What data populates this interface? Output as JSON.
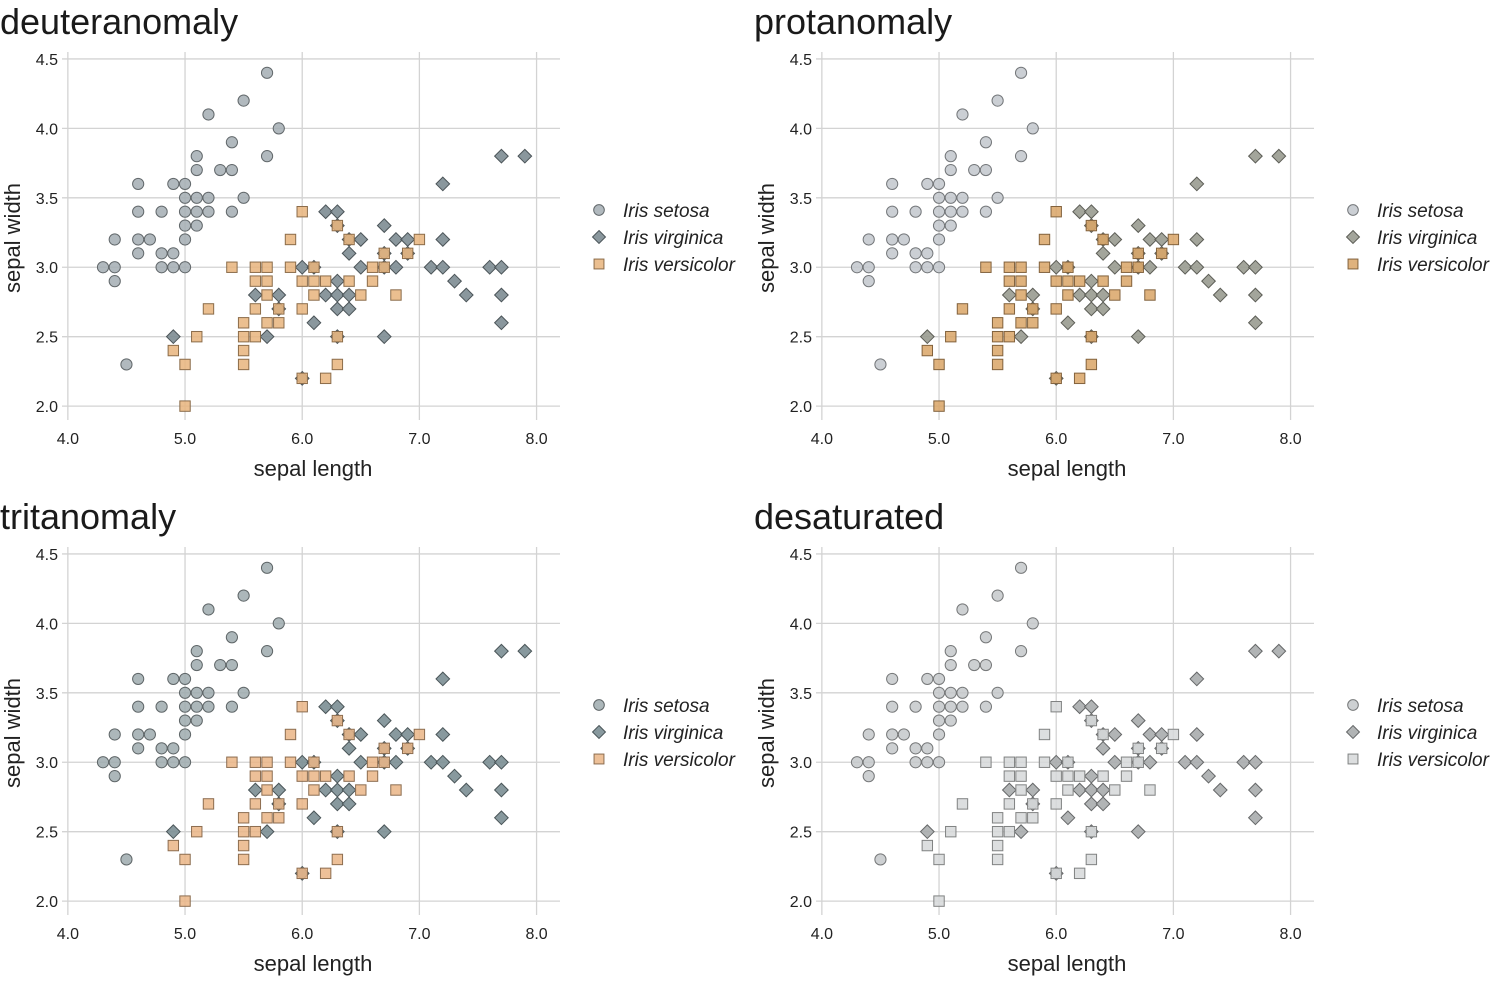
{
  "chart_data": [
    {
      "type": "scatter",
      "title": "deuteranomaly",
      "xlabel": "sepal length",
      "ylabel": "sepal width",
      "xlim": [
        3.95,
        8.2
      ],
      "ylim": [
        1.9,
        4.55
      ],
      "xticks": [
        "4.0",
        "5.0",
        "6.0",
        "7.0",
        "8.0"
      ],
      "yticks": [
        "2.0",
        "2.5",
        "3.0",
        "3.5",
        "4.0",
        "4.5"
      ],
      "grid": true,
      "legend_position": "right",
      "series": [
        {
          "name": "Iris setosa",
          "marker": "circle",
          "color": "#a3adb3"
        },
        {
          "name": "Iris virginica",
          "marker": "diamond",
          "color": "#7d8c92"
        },
        {
          "name": "Iris versicolor",
          "marker": "square",
          "color": "#e8b47c"
        }
      ]
    },
    {
      "type": "scatter",
      "title": "protanomaly",
      "xlabel": "sepal length",
      "ylabel": "sepal width",
      "xlim": [
        3.95,
        8.2
      ],
      "ylim": [
        1.9,
        4.55
      ],
      "xticks": [
        "4.0",
        "5.0",
        "6.0",
        "7.0",
        "8.0"
      ],
      "yticks": [
        "2.0",
        "2.5",
        "3.0",
        "3.5",
        "4.0",
        "4.5"
      ],
      "grid": true,
      "legend_position": "right",
      "series": [
        {
          "name": "Iris setosa",
          "marker": "circle",
          "color": "#c2c7cc"
        },
        {
          "name": "Iris virginica",
          "marker": "diamond",
          "color": "#999b90"
        },
        {
          "name": "Iris versicolor",
          "marker": "square",
          "color": "#d9a466"
        }
      ]
    },
    {
      "type": "scatter",
      "title": "tritanomaly",
      "xlabel": "sepal length",
      "ylabel": "sepal width",
      "xlim": [
        3.95,
        8.2
      ],
      "ylim": [
        1.9,
        4.55
      ],
      "xticks": [
        "4.0",
        "5.0",
        "6.0",
        "7.0",
        "8.0"
      ],
      "yticks": [
        "2.0",
        "2.5",
        "3.0",
        "3.5",
        "4.0",
        "4.5"
      ],
      "grid": true,
      "legend_position": "right",
      "series": [
        {
          "name": "Iris setosa",
          "marker": "circle",
          "color": "#9eaaae"
        },
        {
          "name": "Iris virginica",
          "marker": "diamond",
          "color": "#7b8e93"
        },
        {
          "name": "Iris versicolor",
          "marker": "square",
          "color": "#eab586"
        }
      ]
    },
    {
      "type": "scatter",
      "title": "desaturated",
      "xlabel": "sepal length",
      "ylabel": "sepal width",
      "xlim": [
        3.95,
        8.2
      ],
      "ylim": [
        1.9,
        4.55
      ],
      "xticks": [
        "4.0",
        "5.0",
        "6.0",
        "7.0",
        "8.0"
      ],
      "yticks": [
        "2.0",
        "2.5",
        "3.0",
        "3.5",
        "4.0",
        "4.5"
      ],
      "grid": true,
      "legend_position": "right",
      "series": [
        {
          "name": "Iris setosa",
          "marker": "circle",
          "color": "#c4c8ca"
        },
        {
          "name": "Iris virginica",
          "marker": "diamond",
          "color": "#a9acad"
        },
        {
          "name": "Iris versicolor",
          "marker": "square",
          "color": "#d6d8d9"
        }
      ]
    }
  ],
  "points": {
    "setosa": [
      [
        4.3,
        3.0
      ],
      [
        4.4,
        3.0
      ],
      [
        4.4,
        2.9
      ],
      [
        4.4,
        3.2
      ],
      [
        4.5,
        2.3
      ],
      [
        4.6,
        3.1
      ],
      [
        4.6,
        3.2
      ],
      [
        4.6,
        3.4
      ],
      [
        4.6,
        3.6
      ],
      [
        4.7,
        3.2
      ],
      [
        4.8,
        3.0
      ],
      [
        4.8,
        3.1
      ],
      [
        4.8,
        3.4
      ],
      [
        4.9,
        3.0
      ],
      [
        4.9,
        3.1
      ],
      [
        4.9,
        3.6
      ],
      [
        5.0,
        3.0
      ],
      [
        5.0,
        3.2
      ],
      [
        5.0,
        3.3
      ],
      [
        5.0,
        3.4
      ],
      [
        5.0,
        3.5
      ],
      [
        5.0,
        3.6
      ],
      [
        5.1,
        3.3
      ],
      [
        5.1,
        3.4
      ],
      [
        5.1,
        3.5
      ],
      [
        5.1,
        3.7
      ],
      [
        5.1,
        3.8
      ],
      [
        5.2,
        3.4
      ],
      [
        5.2,
        3.5
      ],
      [
        5.2,
        4.1
      ],
      [
        5.3,
        3.7
      ],
      [
        5.4,
        3.4
      ],
      [
        5.4,
        3.7
      ],
      [
        5.4,
        3.9
      ],
      [
        5.5,
        3.5
      ],
      [
        5.5,
        4.2
      ],
      [
        5.7,
        3.8
      ],
      [
        5.7,
        4.4
      ],
      [
        5.8,
        4.0
      ]
    ],
    "virginica": [
      [
        4.9,
        2.5
      ],
      [
        5.6,
        2.8
      ],
      [
        5.7,
        2.5
      ],
      [
        5.8,
        2.7
      ],
      [
        5.8,
        2.8
      ],
      [
        6.0,
        2.2
      ],
      [
        6.0,
        3.0
      ],
      [
        6.1,
        2.6
      ],
      [
        6.1,
        3.0
      ],
      [
        6.2,
        2.8
      ],
      [
        6.2,
        3.4
      ],
      [
        6.3,
        2.5
      ],
      [
        6.3,
        2.7
      ],
      [
        6.3,
        2.8
      ],
      [
        6.3,
        2.9
      ],
      [
        6.3,
        3.3
      ],
      [
        6.3,
        3.4
      ],
      [
        6.4,
        2.7
      ],
      [
        6.4,
        2.8
      ],
      [
        6.4,
        3.1
      ],
      [
        6.4,
        3.2
      ],
      [
        6.5,
        3.0
      ],
      [
        6.5,
        3.2
      ],
      [
        6.7,
        2.5
      ],
      [
        6.7,
        3.0
      ],
      [
        6.7,
        3.1
      ],
      [
        6.7,
        3.3
      ],
      [
        6.8,
        3.0
      ],
      [
        6.8,
        3.2
      ],
      [
        6.9,
        3.1
      ],
      [
        6.9,
        3.2
      ],
      [
        7.1,
        3.0
      ],
      [
        7.2,
        3.0
      ],
      [
        7.2,
        3.2
      ],
      [
        7.2,
        3.6
      ],
      [
        7.3,
        2.9
      ],
      [
        7.4,
        2.8
      ],
      [
        7.6,
        3.0
      ],
      [
        7.7,
        2.6
      ],
      [
        7.7,
        2.8
      ],
      [
        7.7,
        3.0
      ],
      [
        7.7,
        3.8
      ],
      [
        7.9,
        3.8
      ]
    ],
    "versicolor": [
      [
        4.9,
        2.4
      ],
      [
        5.0,
        2.0
      ],
      [
        5.0,
        2.3
      ],
      [
        5.1,
        2.5
      ],
      [
        5.2,
        2.7
      ],
      [
        5.4,
        3.0
      ],
      [
        5.5,
        2.3
      ],
      [
        5.5,
        2.4
      ],
      [
        5.5,
        2.5
      ],
      [
        5.5,
        2.6
      ],
      [
        5.6,
        2.5
      ],
      [
        5.6,
        2.7
      ],
      [
        5.6,
        2.9
      ],
      [
        5.6,
        3.0
      ],
      [
        5.7,
        2.6
      ],
      [
        5.7,
        2.8
      ],
      [
        5.7,
        2.9
      ],
      [
        5.7,
        3.0
      ],
      [
        5.8,
        2.6
      ],
      [
        5.8,
        2.7
      ],
      [
        5.9,
        3.0
      ],
      [
        5.9,
        3.2
      ],
      [
        6.0,
        2.2
      ],
      [
        6.0,
        2.7
      ],
      [
        6.0,
        2.9
      ],
      [
        6.0,
        3.4
      ],
      [
        6.1,
        2.8
      ],
      [
        6.1,
        2.9
      ],
      [
        6.1,
        3.0
      ],
      [
        6.2,
        2.2
      ],
      [
        6.2,
        2.9
      ],
      [
        6.3,
        2.3
      ],
      [
        6.3,
        2.5
      ],
      [
        6.3,
        3.3
      ],
      [
        6.4,
        2.9
      ],
      [
        6.4,
        3.2
      ],
      [
        6.5,
        2.8
      ],
      [
        6.6,
        2.9
      ],
      [
        6.6,
        3.0
      ],
      [
        6.7,
        3.0
      ],
      [
        6.7,
        3.1
      ],
      [
        6.8,
        2.8
      ],
      [
        6.9,
        3.1
      ],
      [
        7.0,
        3.2
      ]
    ]
  }
}
